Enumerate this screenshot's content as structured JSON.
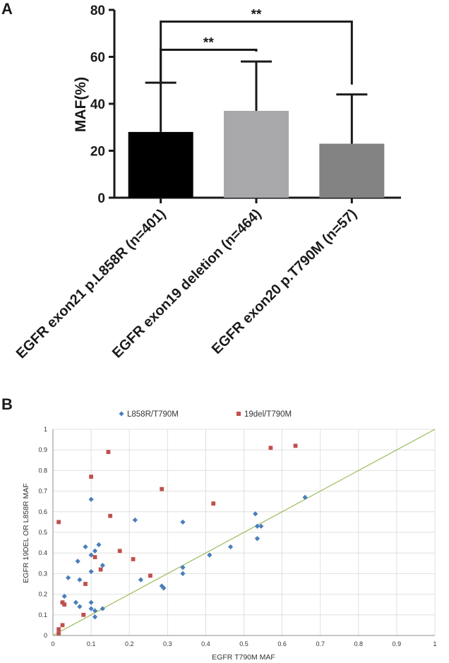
{
  "panel_labels": {
    "a": "A",
    "b": "B"
  },
  "chart_data": [
    {
      "type": "bar",
      "ylabel": "MAF(%)",
      "ylim": [
        0,
        80
      ],
      "yticks": [
        "0",
        "20",
        "40",
        "60",
        "80"
      ],
      "grid": false,
      "categories": [
        "EGFR exon21 p.L858R (n=401)",
        "EGFR exon19 deletion (n=464)",
        "EGFR exon20 p.T790M (n=57)"
      ],
      "values": [
        28,
        37,
        23
      ],
      "error_upper": [
        49,
        58,
        44
      ],
      "colors": [
        "#000000",
        "#a8a8ab",
        "#838383"
      ],
      "significance": [
        {
          "from": 0,
          "to": 1,
          "label": "**",
          "y": 63
        },
        {
          "from": 0,
          "to": 2,
          "label": "**",
          "y": 75
        }
      ]
    },
    {
      "type": "scatter",
      "xlabel": "EGFR T790M MAF",
      "ylabel": "EGFR 19DEL OR L858R MAF",
      "xlim": [
        0,
        1
      ],
      "ylim": [
        0,
        1
      ],
      "xticks": [
        "0",
        "0.1",
        "0.2",
        "0.3",
        "0.4",
        "0.5",
        "0.6",
        "0.7",
        "0.8",
        "0.9",
        "1"
      ],
      "yticks": [
        "0",
        "0.1",
        "0.2",
        "0.3",
        "0.4",
        "0.5",
        "0.6",
        "0.7",
        "0.8",
        "0.9",
        "1"
      ],
      "grid": true,
      "legend_position": "top",
      "reference_line": {
        "from": [
          0,
          0
        ],
        "to": [
          1,
          1
        ],
        "color": "#9bbb59"
      },
      "series": [
        {
          "name": "L858R/T790M",
          "marker": "diamond",
          "color": "#4a7ebb",
          "points": [
            [
              0.025,
              0.16
            ],
            [
              0.03,
              0.19
            ],
            [
              0.04,
              0.28
            ],
            [
              0.06,
              0.16
            ],
            [
              0.065,
              0.36
            ],
            [
              0.07,
              0.27
            ],
            [
              0.07,
              0.14
            ],
            [
              0.085,
              0.43
            ],
            [
              0.1,
              0.66
            ],
            [
              0.1,
              0.39
            ],
            [
              0.1,
              0.31
            ],
            [
              0.1,
              0.16
            ],
            [
              0.1,
              0.13
            ],
            [
              0.11,
              0.41
            ],
            [
              0.11,
              0.12
            ],
            [
              0.11,
              0.09
            ],
            [
              0.12,
              0.44
            ],
            [
              0.13,
              0.34
            ],
            [
              0.13,
              0.13
            ],
            [
              0.215,
              0.56
            ],
            [
              0.23,
              0.27
            ],
            [
              0.285,
              0.24
            ],
            [
              0.29,
              0.23
            ],
            [
              0.34,
              0.55
            ],
            [
              0.34,
              0.33
            ],
            [
              0.34,
              0.3
            ],
            [
              0.41,
              0.39
            ],
            [
              0.465,
              0.43
            ],
            [
              0.53,
              0.59
            ],
            [
              0.535,
              0.53
            ],
            [
              0.535,
              0.47
            ],
            [
              0.545,
              0.53
            ],
            [
              0.66,
              0.67
            ]
          ]
        },
        {
          "name": "19del/T790M",
          "marker": "square",
          "color": "#c0504d",
          "points": [
            [
              0.015,
              0.55
            ],
            [
              0.015,
              0.03
            ],
            [
              0.015,
              0.01
            ],
            [
              0.025,
              0.05
            ],
            [
              0.025,
              0.16
            ],
            [
              0.03,
              0.15
            ],
            [
              0.08,
              0.1
            ],
            [
              0.085,
              0.25
            ],
            [
              0.1,
              0.77
            ],
            [
              0.11,
              0.38
            ],
            [
              0.125,
              0.32
            ],
            [
              0.145,
              0.89
            ],
            [
              0.15,
              0.58
            ],
            [
              0.175,
              0.41
            ],
            [
              0.21,
              0.37
            ],
            [
              0.255,
              0.29
            ],
            [
              0.285,
              0.71
            ],
            [
              0.42,
              0.64
            ],
            [
              0.57,
              0.91
            ],
            [
              0.635,
              0.92
            ]
          ]
        }
      ]
    }
  ]
}
